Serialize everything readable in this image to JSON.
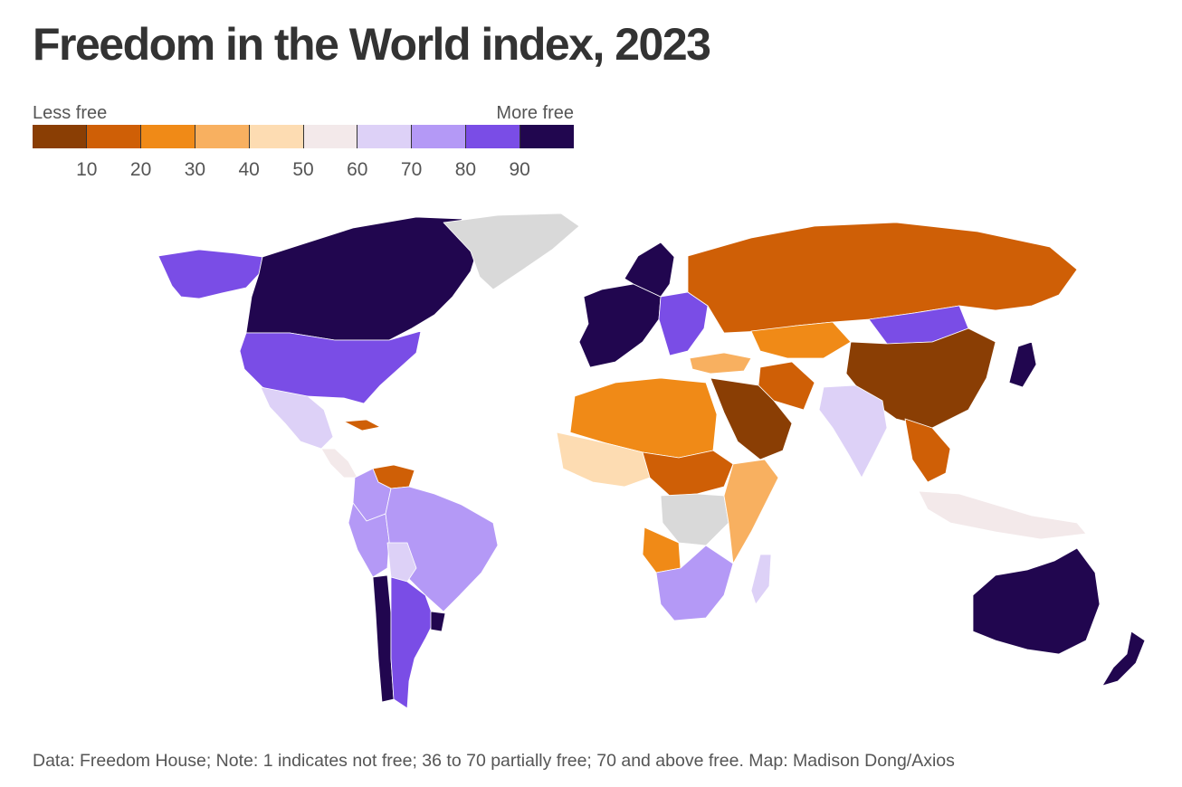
{
  "title": "Freedom in the World index, 2023",
  "legend": {
    "low_label": "Less free",
    "high_label": "More free",
    "colors": [
      "#8a3e04",
      "#cf5f06",
      "#f08a17",
      "#f8b060",
      "#fddcb2",
      "#f3e9ea",
      "#ddd1f7",
      "#b499f6",
      "#7a4de6",
      "#21064f"
    ],
    "ticks": [
      "10",
      "20",
      "30",
      "40",
      "50",
      "60",
      "70",
      "80",
      "90"
    ]
  },
  "no_data_color": "#d9d9d9",
  "map": {
    "regions": [
      {
        "name": "Canada",
        "score": 98
      },
      {
        "name": "United States",
        "score": 83
      },
      {
        "name": "Alaska",
        "score": 83
      },
      {
        "name": "Greenland",
        "score": null
      },
      {
        "name": "Mexico",
        "score": 60
      },
      {
        "name": "Cuba",
        "score": 12
      },
      {
        "name": "Central America",
        "score": 55
      },
      {
        "name": "Venezuela",
        "score": 14
      },
      {
        "name": "Colombia",
        "score": 70
      },
      {
        "name": "Brazil",
        "score": 72
      },
      {
        "name": "Peru",
        "score": 72
      },
      {
        "name": "Bolivia",
        "score": 65
      },
      {
        "name": "Chile",
        "score": 94
      },
      {
        "name": "Argentina",
        "score": 85
      },
      {
        "name": "Uruguay",
        "score": 97
      },
      {
        "name": "Western Europe",
        "score": 93
      },
      {
        "name": "Scandinavia",
        "score": 99
      },
      {
        "name": "Eastern Europe",
        "score": 80
      },
      {
        "name": "Russia",
        "score": 16
      },
      {
        "name": "Kazakhstan",
        "score": 23
      },
      {
        "name": "Mongolia",
        "score": 84
      },
      {
        "name": "China",
        "score": 9
      },
      {
        "name": "Japan",
        "score": 96
      },
      {
        "name": "India",
        "score": 66
      },
      {
        "name": "Middle East",
        "score": 8
      },
      {
        "name": "Iran",
        "score": 12
      },
      {
        "name": "Turkey",
        "score": 32
      },
      {
        "name": "North Africa",
        "score": 27
      },
      {
        "name": "West Africa",
        "score": 40
      },
      {
        "name": "Central Africa",
        "score": 15
      },
      {
        "name": "DR Congo",
        "score": null
      },
      {
        "name": "Angola",
        "score": 28
      },
      {
        "name": "East Africa",
        "score": 35
      },
      {
        "name": "Southern Africa",
        "score": 78
      },
      {
        "name": "Madagascar",
        "score": 61
      },
      {
        "name": "Southeast Asia",
        "score": 18
      },
      {
        "name": "Indonesia",
        "score": 58
      },
      {
        "name": "Australia",
        "score": 95
      },
      {
        "name": "New Zealand",
        "score": 99
      }
    ]
  },
  "footer": "Data: Freedom House; Note: 1 indicates not free; 36 to 70 partially free; 70 and above free. Map: Madison Dong/Axios"
}
